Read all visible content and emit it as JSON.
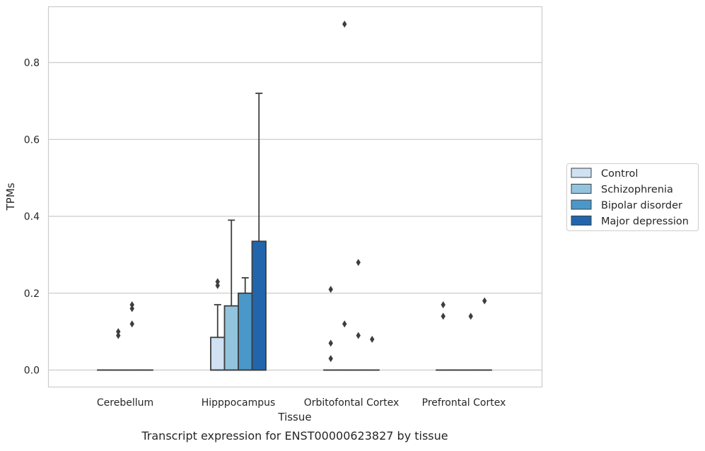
{
  "chart_data": {
    "type": "box",
    "title": "",
    "caption": "Transcript expression for ENST00000623827 by tissue",
    "xlabel": "Tissue",
    "ylabel": "TPMs",
    "ylim": [
      -0.045,
      0.945
    ],
    "yticks": [
      0.0,
      0.2,
      0.4,
      0.6,
      0.8
    ],
    "ytick_labels": [
      "0.0",
      "0.2",
      "0.4",
      "0.6",
      "0.8"
    ],
    "grid": "horizontal",
    "legend_position": "right",
    "categories": [
      "Cerebellum",
      "Hipppocampus",
      "Orbitofontal Cortex",
      "Prefrontal Cortex"
    ],
    "series": [
      {
        "name": "Control",
        "color": "#cfe1f2",
        "boxes": [
          {
            "q1": 0,
            "median": 0,
            "q3": 0,
            "whisker_low": 0,
            "whisker_high": 0,
            "outliers": []
          },
          {
            "q1": 0,
            "median": 0,
            "q3": 0.085,
            "whisker_low": 0,
            "whisker_high": 0.17,
            "outliers": [
              0.22,
              0.23
            ]
          },
          {
            "q1": 0,
            "median": 0,
            "q3": 0,
            "whisker_low": 0,
            "whisker_high": 0,
            "outliers": [
              0.03,
              0.07,
              0.21
            ]
          },
          {
            "q1": 0,
            "median": 0,
            "q3": 0,
            "whisker_low": 0,
            "whisker_high": 0,
            "outliers": [
              0.14,
              0.17
            ]
          }
        ]
      },
      {
        "name": "Schizophrenia",
        "color": "#93c4de",
        "boxes": [
          {
            "q1": 0,
            "median": 0,
            "q3": 0,
            "whisker_low": 0,
            "whisker_high": 0,
            "outliers": [
              0.09,
              0.1
            ]
          },
          {
            "q1": 0,
            "median": 0,
            "q3": 0.167,
            "whisker_low": 0,
            "whisker_high": 0.39,
            "outliers": []
          },
          {
            "q1": 0,
            "median": 0,
            "q3": 0,
            "whisker_low": 0,
            "whisker_high": 0,
            "outliers": [
              0.12,
              0.9
            ]
          },
          {
            "q1": 0,
            "median": 0,
            "q3": 0,
            "whisker_low": 0,
            "whisker_high": 0,
            "outliers": []
          }
        ]
      },
      {
        "name": "Bipolar disorder",
        "color": "#4a98c9",
        "boxes": [
          {
            "q1": 0,
            "median": 0,
            "q3": 0,
            "whisker_low": 0,
            "whisker_high": 0,
            "outliers": [
              0.12,
              0.16,
              0.17
            ]
          },
          {
            "q1": 0,
            "median": 0,
            "q3": 0.2,
            "whisker_low": 0,
            "whisker_high": 0.24,
            "outliers": []
          },
          {
            "q1": 0,
            "median": 0,
            "q3": 0,
            "whisker_low": 0,
            "whisker_high": 0,
            "outliers": [
              0.09,
              0.28
            ]
          },
          {
            "q1": 0,
            "median": 0,
            "q3": 0,
            "whisker_low": 0,
            "whisker_high": 0,
            "outliers": [
              0.14
            ]
          }
        ]
      },
      {
        "name": "Major depression",
        "color": "#2166ac",
        "boxes": [
          {
            "q1": 0,
            "median": 0,
            "q3": 0,
            "whisker_low": 0,
            "whisker_high": 0,
            "outliers": []
          },
          {
            "q1": 0,
            "median": 0,
            "q3": 0.335,
            "whisker_low": 0,
            "whisker_high": 0.72,
            "outliers": []
          },
          {
            "q1": 0,
            "median": 0,
            "q3": 0,
            "whisker_low": 0,
            "whisker_high": 0,
            "outliers": [
              0.08
            ]
          },
          {
            "q1": 0,
            "median": 0,
            "q3": 0,
            "whisker_low": 0,
            "whisker_high": 0,
            "outliers": [
              0.18
            ]
          }
        ]
      }
    ]
  }
}
